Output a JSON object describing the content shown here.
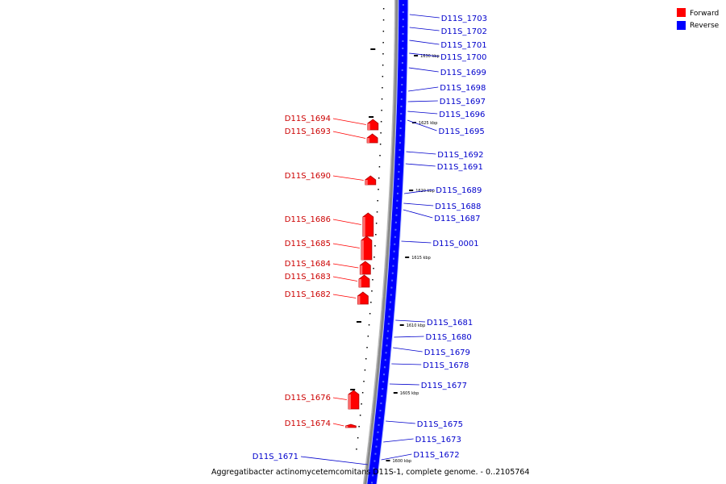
{
  "caption": "Aggregatibacter actinomycetemcomitans D11S-1, complete genome. - 0..2105764",
  "legend": [
    {
      "label": "Forward",
      "color": "#ff0000"
    },
    {
      "label": "Reverse",
      "color": "#0000ff"
    }
  ],
  "scale_labels": [
    "1630 kbp",
    "1625 kbp",
    "1620 kbp",
    "1615 kbp",
    "1610 kbp",
    "1605 kbp",
    "1600 kbp"
  ],
  "reverse_genes": [
    "D11S_1703",
    "D11S_1702",
    "D11S_1701",
    "D11S_1700",
    "D11S_1699",
    "D11S_1698",
    "D11S_1697",
    "D11S_1696",
    "D11S_1695",
    "D11S_1692",
    "D11S_1691",
    "D11S_1689",
    "D11S_1688",
    "D11S_1687",
    "D11S_0001",
    "D11S_1681",
    "D11S_1680",
    "D11S_1679",
    "D11S_1678",
    "D11S_1677",
    "D11S_1675",
    "D11S_1673",
    "D11S_1672",
    "D11S_1671"
  ],
  "forward_genes": [
    "D11S_1694",
    "D11S_1693",
    "D11S_1690",
    "D11S_1686",
    "D11S_1685",
    "D11S_1684",
    "D11S_1683",
    "D11S_1682",
    "D11S_1676",
    "D11S_1674"
  ]
}
